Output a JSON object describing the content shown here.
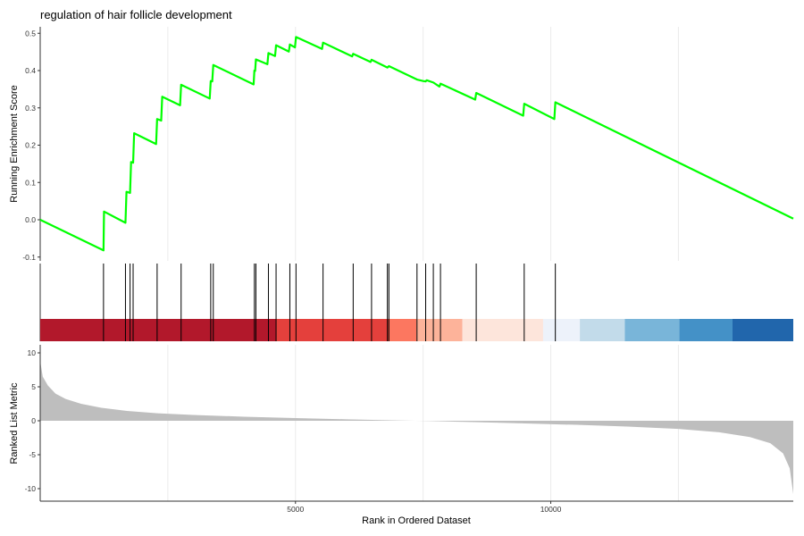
{
  "chart_data": {
    "type": "line",
    "title": "regulation of hair follicle development",
    "xlabel": "Rank in Ordered Dataset",
    "x_range": [
      0,
      14750
    ],
    "x_ticks": [
      5000,
      10000
    ],
    "x_tick_labels": [
      "5000",
      "10000"
    ],
    "grid": true,
    "panels": {
      "enrichment": {
        "ylabel": "Running Enrichment Score",
        "ylim": [
          -0.11,
          0.52
        ],
        "y_ticks": [
          -0.1,
          0.0,
          0.1,
          0.2,
          0.3,
          0.4,
          0.5
        ],
        "y_tick_labels": [
          "-0.1",
          "0.0",
          "0.1",
          "0.2",
          "0.3",
          "0.4",
          "0.5"
        ],
        "line_color": "#00ff00",
        "series": [
          {
            "points": [
              [
                0,
                0.0
              ],
              [
                1240,
                -0.082
              ],
              [
                1250,
                0.022
              ],
              [
                1670,
                -0.008
              ],
              [
                1690,
                0.075
              ],
              [
                1760,
                0.072
              ],
              [
                1780,
                0.155
              ],
              [
                1820,
                0.153
              ],
              [
                1840,
                0.232
              ],
              [
                2270,
                0.203
              ],
              [
                2290,
                0.27
              ],
              [
                2370,
                0.266
              ],
              [
                2390,
                0.33
              ],
              [
                2740,
                0.307
              ],
              [
                2760,
                0.362
              ],
              [
                3320,
                0.325
              ],
              [
                3340,
                0.372
              ],
              [
                3370,
                0.371
              ],
              [
                3390,
                0.415
              ],
              [
                4180,
                0.363
              ],
              [
                4195,
                0.4
              ],
              [
                4210,
                0.399
              ],
              [
                4225,
                0.43
              ],
              [
                4450,
                0.417
              ],
              [
                4470,
                0.447
              ],
              [
                4600,
                0.439
              ],
              [
                4620,
                0.468
              ],
              [
                4870,
                0.451
              ],
              [
                4890,
                0.47
              ],
              [
                4990,
                0.462
              ],
              [
                5010,
                0.49
              ],
              [
                5520,
                0.458
              ],
              [
                5540,
                0.475
              ],
              [
                6110,
                0.438
              ],
              [
                6130,
                0.445
              ],
              [
                6470,
                0.423
              ],
              [
                6490,
                0.429
              ],
              [
                6800,
                0.408
              ],
              [
                6830,
                0.412
              ],
              [
                7380,
                0.376
              ],
              [
                7500,
                0.372
              ],
              [
                7550,
                0.371
              ],
              [
                7570,
                0.374
              ],
              [
                7700,
                0.368
              ],
              [
                7820,
                0.357
              ],
              [
                7840,
                0.365
              ],
              [
                8520,
                0.322
              ],
              [
                8540,
                0.34
              ],
              [
                9460,
                0.279
              ],
              [
                9480,
                0.311
              ],
              [
                10070,
                0.27
              ],
              [
                10090,
                0.315
              ],
              [
                14750,
                0.003
              ]
            ]
          }
        ]
      },
      "gene_hits": {
        "positions": [
          1240,
          1670,
          1760,
          1820,
          2290,
          2760,
          3340,
          3390,
          4195,
          4225,
          4470,
          4620,
          4890,
          5010,
          5540,
          6130,
          6490,
          6800,
          6830,
          7380,
          7550,
          7700,
          7840,
          8540,
          9480,
          10090
        ],
        "line_color": "#000000",
        "color_bands": [
          {
            "from": 0,
            "to": 4620,
            "color": "#b2182b"
          },
          {
            "from": 4620,
            "to": 6830,
            "color": "#e4403c"
          },
          {
            "from": 6830,
            "to": 7370,
            "color": "#fc7760"
          },
          {
            "from": 7370,
            "to": 8270,
            "color": "#fdb39a"
          },
          {
            "from": 8270,
            "to": 9850,
            "color": "#fde5db"
          },
          {
            "from": 9850,
            "to": 10570,
            "color": "#edf2fa"
          },
          {
            "from": 10570,
            "to": 11450,
            "color": "#c2dbea"
          },
          {
            "from": 11450,
            "to": 12520,
            "color": "#79b5d9"
          },
          {
            "from": 12520,
            "to": 13560,
            "color": "#4491c7"
          },
          {
            "from": 13560,
            "to": 14750,
            "color": "#2166ac"
          }
        ]
      },
      "ranked_metric": {
        "ylabel": "Ranked List Metric",
        "ylim": [
          -11,
          11
        ],
        "y_ticks": [
          10,
          5,
          0,
          -5,
          -10
        ],
        "y_tick_labels": [
          "10",
          "5",
          "0",
          "-5",
          "-10"
        ],
        "fill_color": "#bebebe",
        "points": [
          [
            0,
            8.8
          ],
          [
            50,
            6.5
          ],
          [
            150,
            5.2
          ],
          [
            300,
            4.0
          ],
          [
            500,
            3.2
          ],
          [
            800,
            2.5
          ],
          [
            1200,
            1.9
          ],
          [
            1700,
            1.45
          ],
          [
            2300,
            1.1
          ],
          [
            3000,
            0.85
          ],
          [
            4000,
            0.6
          ],
          [
            5000,
            0.4
          ],
          [
            6000,
            0.22
          ],
          [
            7000,
            0.05
          ],
          [
            7700,
            -0.05
          ],
          [
            8500,
            -0.2
          ],
          [
            9500,
            -0.4
          ],
          [
            10500,
            -0.6
          ],
          [
            11500,
            -0.85
          ],
          [
            12500,
            -1.2
          ],
          [
            13300,
            -1.7
          ],
          [
            13900,
            -2.4
          ],
          [
            14300,
            -3.3
          ],
          [
            14550,
            -4.8
          ],
          [
            14680,
            -7.0
          ],
          [
            14750,
            -10.8
          ]
        ]
      }
    }
  }
}
